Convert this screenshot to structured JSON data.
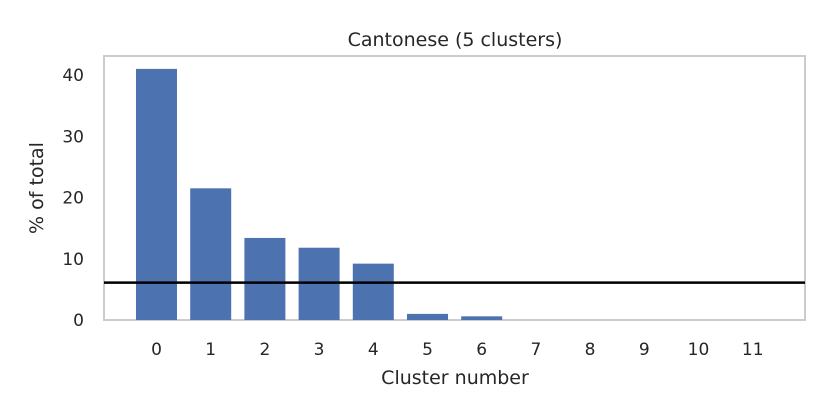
{
  "chart_data": {
    "type": "bar",
    "title": "Cantonese (5 clusters)",
    "xlabel": "Cluster number",
    "ylabel": "% of total",
    "categories": [
      "0",
      "1",
      "2",
      "3",
      "4",
      "5",
      "6",
      "7",
      "8",
      "9",
      "10",
      "11"
    ],
    "values": [
      41.0,
      21.5,
      13.4,
      11.8,
      9.2,
      1.0,
      0.6,
      0,
      0,
      0,
      0,
      0
    ],
    "yticks": [
      "0",
      "10",
      "20",
      "30",
      "40"
    ],
    "ylim": [
      0,
      41.5
    ],
    "reference_line": {
      "y": 6.1
    },
    "grid": false,
    "bar_color": "#4c72b0",
    "line_color": "#000000"
  }
}
